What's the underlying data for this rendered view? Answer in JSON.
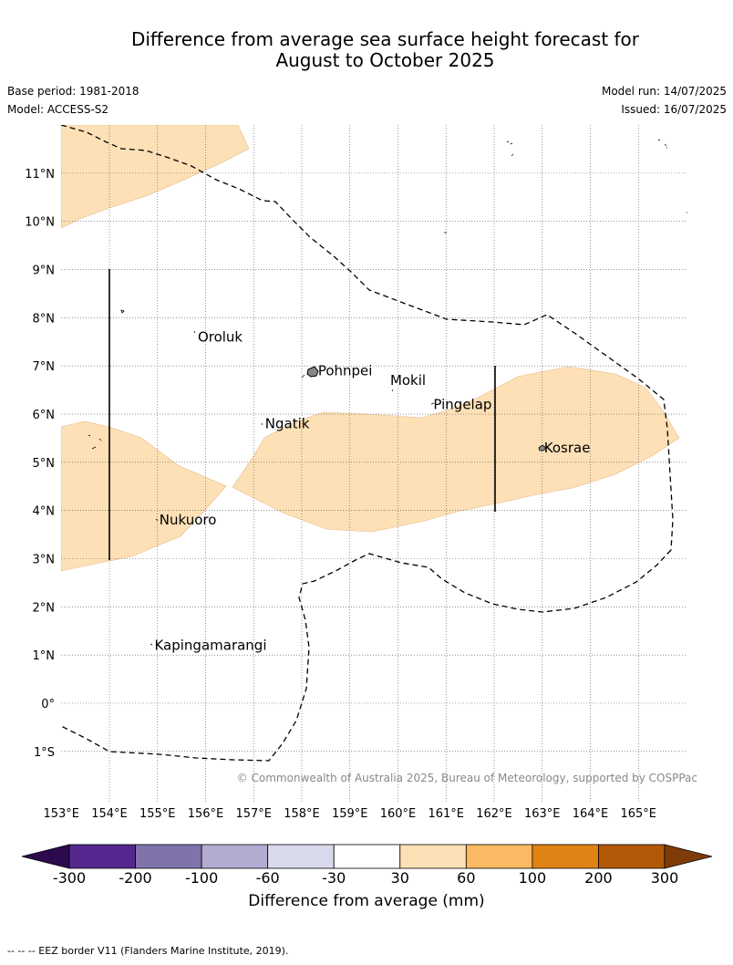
{
  "title_line1": "Difference from average sea surface height forecast for",
  "title_line2": "August to October 2025",
  "base_period": "Base period: 1981-2018",
  "model": "Model: ACCESS-S2",
  "model_run": "Model run: 14/07/2025",
  "issued": "Issued: 16/07/2025",
  "copyright": "© Commonwealth of Australia 2025, Bureau of Meteorology, supported by COSPPac",
  "footer": "-- -- -- EEZ border V11 (Flanders Marine Institute, 2019).",
  "colorbar": {
    "title": "Difference from average (mm)",
    "ticks": [
      "-300",
      "-200",
      "-100",
      "-60",
      "-30",
      "30",
      "60",
      "100",
      "200",
      "300"
    ],
    "colors": [
      "#2d0a4e",
      "#54278f",
      "#8073ac",
      "#b2abd2",
      "#d8daeb",
      "#ffffff",
      "#fee0b6",
      "#fdb863",
      "#e08214",
      "#b35806",
      "#7f3b08"
    ]
  },
  "map_data": {
    "lon_labels": [
      "153°E",
      "154°E",
      "155°E",
      "156°E",
      "157°E",
      "158°E",
      "159°E",
      "160°E",
      "161°E",
      "162°E",
      "163°E",
      "164°E",
      "165°E"
    ],
    "lat_labels": [
      "11°N",
      "10°N",
      "9°N",
      "8°N",
      "7°N",
      "6°N",
      "5°N",
      "4°N",
      "3°N",
      "2°N",
      "1°N",
      "0°",
      "1°S"
    ],
    "lon_values": [
      153,
      154,
      155,
      156,
      157,
      158,
      159,
      160,
      161,
      162,
      163,
      164,
      165
    ],
    "lat_values": [
      11,
      10,
      9,
      8,
      7,
      6,
      5,
      4,
      3,
      2,
      1,
      0,
      -1
    ],
    "shaded_class": "30 to 60",
    "places": [
      {
        "name": "Oroluk",
        "lon": 155.8,
        "lat": 7.6
      },
      {
        "name": "Pohnpei",
        "lon": 158.3,
        "lat": 6.9
      },
      {
        "name": "Mokil",
        "lon": 159.8,
        "lat": 6.7
      },
      {
        "name": "Pingelap",
        "lon": 160.7,
        "lat": 6.2
      },
      {
        "name": "Ngatik",
        "lon": 157.2,
        "lat": 5.8
      },
      {
        "name": "Kosrae",
        "lon": 163.0,
        "lat": 5.3
      },
      {
        "name": "Nukuoro",
        "lon": 155.0,
        "lat": 3.8
      },
      {
        "name": "Kapingamarangi",
        "lon": 154.9,
        "lat": 1.2
      }
    ]
  }
}
